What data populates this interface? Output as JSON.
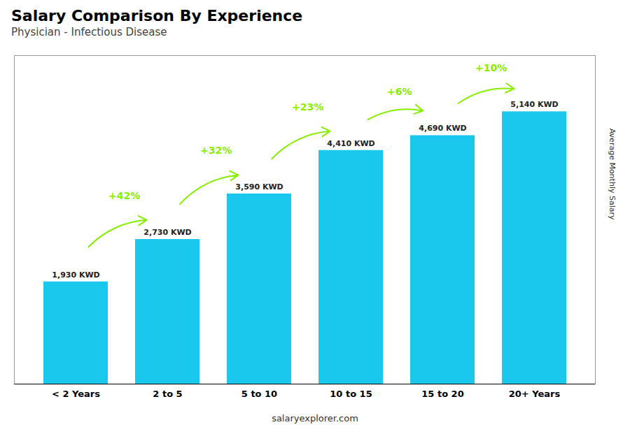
{
  "chart_data": {
    "type": "bar",
    "title": "Salary Comparison By Experience",
    "subtitle": "Physician - Infectious Disease",
    "categories": [
      "< 2 Years",
      "2 to 5",
      "5 to 10",
      "10 to 15",
      "15 to 20",
      "20+ Years"
    ],
    "values": [
      1930,
      2730,
      3590,
      4410,
      4690,
      5140
    ],
    "value_labels": [
      "1,930 KWD",
      "2,730 KWD",
      "3,590 KWD",
      "4,410 KWD",
      "4,690 KWD",
      "5,140 KWD"
    ],
    "data_labels": true,
    "color": "#1ac8ed",
    "ylabel": "Average Monthly Salary",
    "ylim": [
      0,
      6200
    ],
    "tick_labels": "x",
    "annotations": [
      {
        "text": "+42%",
        "color": "#88ee00"
      },
      {
        "text": "+32%",
        "color": "#88ee00"
      },
      {
        "text": "+23%",
        "color": "#88ee00"
      },
      {
        "text": "+6%",
        "color": "#88ee00"
      },
      {
        "text": "+10%",
        "color": "#88ee00"
      }
    ],
    "caption": "salaryexplorer.com"
  }
}
